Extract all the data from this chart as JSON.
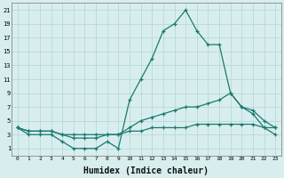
{
  "x": [
    0,
    1,
    2,
    3,
    4,
    5,
    6,
    7,
    8,
    9,
    10,
    11,
    12,
    13,
    14,
    15,
    16,
    17,
    18,
    19,
    20,
    21,
    22,
    23
  ],
  "line1": [
    4,
    3,
    3,
    3,
    2,
    1,
    1,
    1,
    2,
    1,
    8,
    11,
    14,
    18,
    19,
    21,
    18,
    16,
    16,
    9,
    7,
    6,
    4,
    3
  ],
  "line2": [
    4,
    3.5,
    3.5,
    3.5,
    3,
    2.5,
    2.5,
    2.5,
    3,
    3,
    4,
    5,
    5.5,
    6,
    6.5,
    7,
    7,
    7.5,
    8,
    9,
    7,
    6.5,
    5,
    4
  ],
  "line3": [
    4,
    3.5,
    3.5,
    3.5,
    3,
    3,
    3,
    3,
    3,
    3,
    3.5,
    3.5,
    4,
    4,
    4,
    4,
    4.5,
    4.5,
    4.5,
    4.5,
    4.5,
    4.5,
    4,
    4
  ],
  "line_color": "#1a7a6e",
  "background_color": "#d8eeee",
  "grid_color": "#b8d8d8",
  "xlabel": "Humidex (Indice chaleur)",
  "xlabel_fontsize": 7,
  "yticks": [
    1,
    3,
    5,
    7,
    9,
    11,
    13,
    15,
    17,
    19,
    21
  ],
  "xticks": [
    0,
    1,
    2,
    3,
    4,
    5,
    6,
    7,
    8,
    9,
    10,
    11,
    12,
    13,
    14,
    15,
    16,
    17,
    18,
    19,
    20,
    21,
    22,
    23
  ],
  "ylim": [
    0,
    22
  ],
  "xlim": [
    -0.5,
    23.5
  ]
}
